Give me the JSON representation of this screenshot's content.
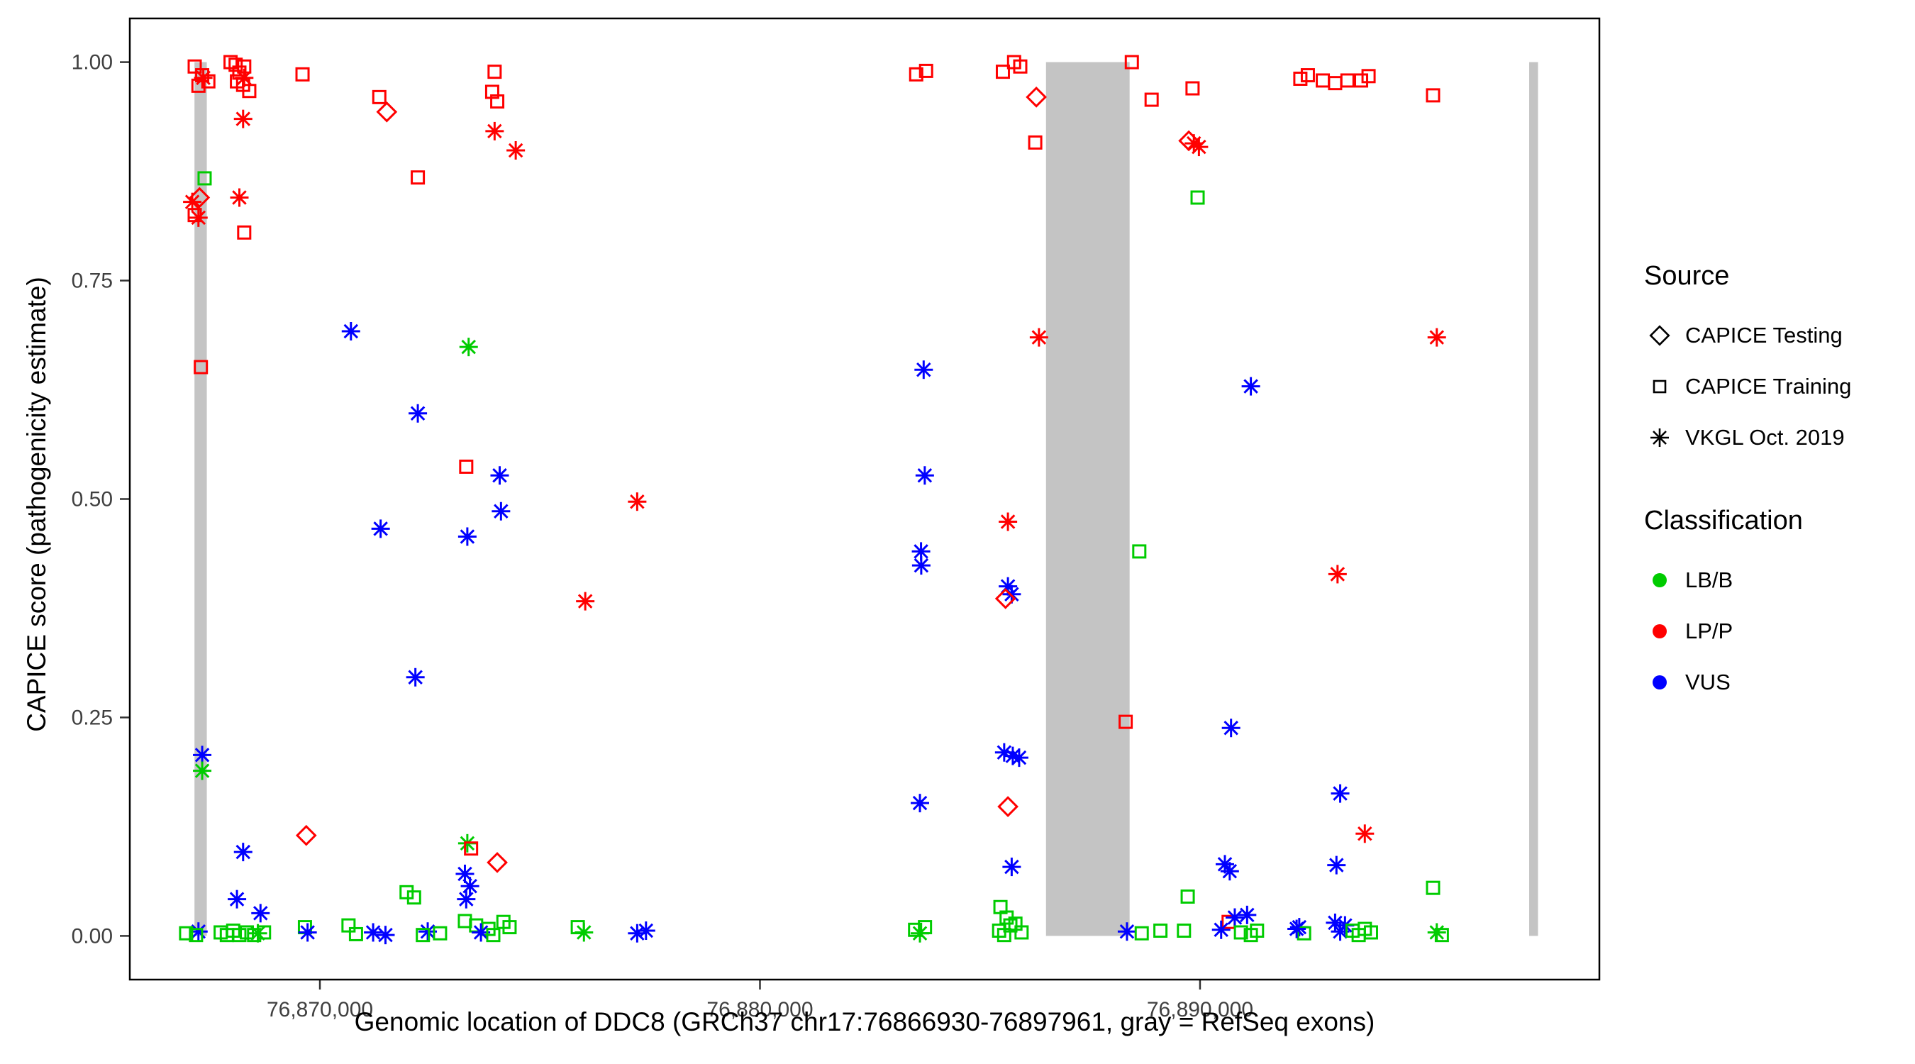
{
  "chart_data": {
    "type": "scatter",
    "title": "",
    "xlabel": "Genomic location of DDC8 (GRCh37 chr17:76866930-76897961, gray = RefSeq exons)",
    "ylabel": "CAPICE score (pathogenicity estimate)",
    "xlim": [
      76865680,
      76899075
    ],
    "ylim": [
      -0.05,
      1.05
    ],
    "grid": false,
    "x_ticks": [
      {
        "value": 76870000,
        "label": "76,870,000"
      },
      {
        "value": 76880000,
        "label": "76,880,000"
      },
      {
        "value": 76890000,
        "label": "76,890,000"
      }
    ],
    "y_ticks": [
      {
        "value": 0.0,
        "label": "0.00"
      },
      {
        "value": 0.25,
        "label": "0.25"
      },
      {
        "value": 0.5,
        "label": "0.50"
      },
      {
        "value": 0.75,
        "label": "0.75"
      },
      {
        "value": 1.0,
        "label": "1.00"
      }
    ],
    "exon_color": "#C4C4C4",
    "exons": [
      {
        "start": 76867150,
        "end": 76867430
      },
      {
        "start": 76886500,
        "end": 76888400
      },
      {
        "start": 76897480,
        "end": 76897680
      }
    ],
    "sources": {
      "T": {
        "label": "CAPICE Testing",
        "shape": "diamond"
      },
      "R": {
        "label": "CAPICE Training",
        "shape": "square"
      },
      "V": {
        "label": "VKGL Oct. 2019",
        "shape": "asterisk"
      }
    },
    "classes": {
      "B": {
        "label": "LB/B",
        "color": "#00CC00"
      },
      "P": {
        "label": "LP/P",
        "color": "#FF0000"
      },
      "U": {
        "label": "VUS",
        "color": "#0000FF"
      }
    },
    "points": [
      [
        76867155,
        0.995,
        "R",
        "P"
      ],
      [
        76867325,
        0.985,
        "R",
        "P"
      ],
      [
        76867240,
        0.973,
        "R",
        "P"
      ],
      [
        76867350,
        0.982,
        "V",
        "P"
      ],
      [
        76867465,
        0.978,
        "R",
        "P"
      ],
      [
        76867970,
        1.0,
        "R",
        "P"
      ],
      [
        76868085,
        0.997,
        "R",
        "P"
      ],
      [
        76868170,
        0.988,
        "R",
        "P"
      ],
      [
        76868280,
        0.995,
        "R",
        "P"
      ],
      [
        76868115,
        0.978,
        "R",
        "P"
      ],
      [
        76868255,
        0.974,
        "R",
        "P"
      ],
      [
        76868280,
        0.982,
        "V",
        "P"
      ],
      [
        76868395,
        0.967,
        "R",
        "P"
      ],
      [
        76868255,
        0.935,
        "V",
        "P"
      ],
      [
        76869605,
        0.986,
        "R",
        "P"
      ],
      [
        76867380,
        0.867,
        "R",
        "B"
      ],
      [
        76867265,
        0.845,
        "T",
        "P"
      ],
      [
        76867100,
        0.84,
        "V",
        "P"
      ],
      [
        76867155,
        0.825,
        "R",
        "P"
      ],
      [
        76867240,
        0.822,
        "V",
        "P"
      ],
      [
        76868170,
        0.845,
        "V",
        "P"
      ],
      [
        76868280,
        0.805,
        "R",
        "P"
      ],
      [
        76867295,
        0.651,
        "R",
        "P"
      ],
      [
        76867325,
        0.207,
        "V",
        "U"
      ],
      [
        76867325,
        0.189,
        "V",
        "B"
      ],
      [
        76868255,
        0.096,
        "V",
        "U"
      ],
      [
        76868115,
        0.042,
        "V",
        "U"
      ],
      [
        76868650,
        0.026,
        "V",
        "U"
      ],
      [
        76869690,
        0.115,
        "T",
        "P"
      ],
      [
        76867240,
        0.005,
        "V",
        "U"
      ],
      [
        76866960,
        0.003,
        "R",
        "B"
      ],
      [
        76867185,
        0.001,
        "R",
        "B"
      ],
      [
        76867745,
        0.004,
        "R",
        "B"
      ],
      [
        76867885,
        0.001,
        "R",
        "B"
      ],
      [
        76868030,
        0.006,
        "R",
        "B"
      ],
      [
        76868170,
        0.001,
        "R",
        "B"
      ],
      [
        76868340,
        0.004,
        "R",
        "B"
      ],
      [
        76868505,
        0.001,
        "R",
        "B"
      ],
      [
        76868730,
        0.004,
        "R",
        "B"
      ],
      [
        76868590,
        0.003,
        "V",
        "B"
      ],
      [
        76869660,
        0.01,
        "R",
        "B"
      ],
      [
        76869720,
        0.004,
        "V",
        "U"
      ],
      [
        76871350,
        0.96,
        "R",
        "P"
      ],
      [
        76871520,
        0.943,
        "T",
        "P"
      ],
      [
        76872225,
        0.868,
        "R",
        "P"
      ],
      [
        76870705,
        0.692,
        "V",
        "U"
      ],
      [
        76872225,
        0.598,
        "V",
        "U"
      ],
      [
        76871380,
        0.466,
        "V",
        "U"
      ],
      [
        76872170,
        0.296,
        "V",
        "U"
      ],
      [
        76871970,
        0.05,
        "R",
        "B"
      ],
      [
        76872140,
        0.044,
        "R",
        "B"
      ],
      [
        76870650,
        0.012,
        "R",
        "B"
      ],
      [
        76870820,
        0.002,
        "R",
        "B"
      ],
      [
        76871210,
        0.004,
        "V",
        "U"
      ],
      [
        76871490,
        0.001,
        "V",
        "U"
      ],
      [
        76872450,
        0.005,
        "V",
        "U"
      ],
      [
        76872340,
        0.001,
        "R",
        "B"
      ],
      [
        76873970,
        0.989,
        "R",
        "P"
      ],
      [
        76873915,
        0.966,
        "R",
        "P"
      ],
      [
        76874030,
        0.955,
        "R",
        "P"
      ],
      [
        76873970,
        0.921,
        "V",
        "P"
      ],
      [
        76874450,
        0.899,
        "V",
        "P"
      ],
      [
        76873380,
        0.674,
        "V",
        "B"
      ],
      [
        76873325,
        0.537,
        "R",
        "P"
      ],
      [
        76874085,
        0.527,
        "V",
        "U"
      ],
      [
        76873350,
        0.457,
        "V",
        "U"
      ],
      [
        76874115,
        0.486,
        "V",
        "U"
      ],
      [
        76873350,
        0.106,
        "V",
        "B"
      ],
      [
        76873435,
        0.1,
        "R",
        "P"
      ],
      [
        76874030,
        0.084,
        "T",
        "P"
      ],
      [
        76873295,
        0.071,
        "V",
        "U"
      ],
      [
        76873410,
        0.057,
        "V",
        "U"
      ],
      [
        76873325,
        0.042,
        "V",
        "U"
      ],
      [
        76873295,
        0.017,
        "R",
        "B"
      ],
      [
        76873550,
        0.012,
        "R",
        "B"
      ],
      [
        76873830,
        0.008,
        "R",
        "B"
      ],
      [
        76874170,
        0.016,
        "R",
        "B"
      ],
      [
        76874310,
        0.01,
        "R",
        "B"
      ],
      [
        76872730,
        0.003,
        "R",
        "B"
      ],
      [
        76873660,
        0.004,
        "V",
        "U"
      ],
      [
        76873940,
        0.001,
        "R",
        "B"
      ],
      [
        76876030,
        0.383,
        "V",
        "P"
      ],
      [
        76877210,
        0.497,
        "V",
        "P"
      ],
      [
        76875860,
        0.01,
        "R",
        "B"
      ],
      [
        76876000,
        0.004,
        "V",
        "B"
      ],
      [
        76877210,
        0.003,
        "V",
        "U"
      ],
      [
        76877410,
        0.006,
        "V",
        "U"
      ],
      [
        76883550,
        0.986,
        "R",
        "P"
      ],
      [
        76883775,
        0.99,
        "R",
        "P"
      ],
      [
        76883720,
        0.648,
        "V",
        "U"
      ],
      [
        76883745,
        0.527,
        "V",
        "U"
      ],
      [
        76883660,
        0.44,
        "V",
        "U"
      ],
      [
        76883665,
        0.424,
        "V",
        "U"
      ],
      [
        76883635,
        0.152,
        "V",
        "U"
      ],
      [
        76883525,
        0.007,
        "R",
        "B"
      ],
      [
        76883635,
        0.003,
        "V",
        "B"
      ],
      [
        76883750,
        0.01,
        "R",
        "B"
      ],
      [
        76885520,
        0.989,
        "R",
        "P"
      ],
      [
        76885775,
        1.0,
        "R",
        "P"
      ],
      [
        76885915,
        0.995,
        "R",
        "P"
      ],
      [
        76886280,
        0.96,
        "T",
        "P"
      ],
      [
        76886255,
        0.908,
        "R",
        "P"
      ],
      [
        76886340,
        0.685,
        "V",
        "P"
      ],
      [
        76885635,
        0.474,
        "V",
        "P"
      ],
      [
        76885635,
        0.4,
        "V",
        "U"
      ],
      [
        76885720,
        0.391,
        "V",
        "U"
      ],
      [
        76885580,
        0.386,
        "T",
        "P"
      ],
      [
        76885550,
        0.21,
        "V",
        "U"
      ],
      [
        76885745,
        0.206,
        "V",
        "U"
      ],
      [
        76885890,
        0.204,
        "V",
        "U"
      ],
      [
        76885635,
        0.148,
        "T",
        "P"
      ],
      [
        76885720,
        0.079,
        "V",
        "U"
      ],
      [
        76885465,
        0.033,
        "R",
        "B"
      ],
      [
        76885605,
        0.021,
        "R",
        "B"
      ],
      [
        76885805,
        0.014,
        "R",
        "B"
      ],
      [
        76885435,
        0.006,
        "R",
        "B"
      ],
      [
        76885550,
        0.001,
        "R",
        "B"
      ],
      [
        76885945,
        0.004,
        "R",
        "B"
      ],
      [
        76885690,
        0.012,
        "R",
        "B"
      ],
      [
        76888450,
        1.0,
        "R",
        "P"
      ],
      [
        76888900,
        0.957,
        "R",
        "P"
      ],
      [
        76888310,
        0.245,
        "R",
        "P"
      ],
      [
        76888620,
        0.44,
        "R",
        "B"
      ],
      [
        76888340,
        0.005,
        "V",
        "U"
      ],
      [
        76888675,
        0.003,
        "R",
        "B"
      ],
      [
        76889100,
        0.006,
        "R",
        "B"
      ],
      [
        76889830,
        0.97,
        "R",
        "P"
      ],
      [
        76889745,
        0.91,
        "T",
        "P"
      ],
      [
        76889860,
        0.907,
        "V",
        "P"
      ],
      [
        76889975,
        0.903,
        "V",
        "P"
      ],
      [
        76889945,
        0.845,
        "R",
        "B"
      ],
      [
        76891155,
        0.629,
        "V",
        "U"
      ],
      [
        76890705,
        0.238,
        "V",
        "U"
      ],
      [
        76890565,
        0.082,
        "V",
        "U"
      ],
      [
        76890675,
        0.074,
        "V",
        "U"
      ],
      [
        76889720,
        0.045,
        "R",
        "B"
      ],
      [
        76889635,
        0.006,
        "R",
        "B"
      ],
      [
        76890650,
        0.016,
        "R",
        "P"
      ],
      [
        76890790,
        0.021,
        "V",
        "U"
      ],
      [
        76891070,
        0.024,
        "V",
        "U"
      ],
      [
        76890930,
        0.004,
        "R",
        "B"
      ],
      [
        76891155,
        0.001,
        "R",
        "B"
      ],
      [
        76891295,
        0.006,
        "R",
        "B"
      ],
      [
        76890480,
        0.007,
        "V",
        "U"
      ],
      [
        76892255,
        0.01,
        "V",
        "U"
      ],
      [
        76892365,
        0.003,
        "R",
        "B"
      ],
      [
        76892280,
        0.981,
        "R",
        "P"
      ],
      [
        76892450,
        0.985,
        "R",
        "P"
      ],
      [
        76892790,
        0.979,
        "R",
        "P"
      ],
      [
        76893070,
        0.976,
        "R",
        "P"
      ],
      [
        76893350,
        0.979,
        "R",
        "P"
      ],
      [
        76893660,
        0.979,
        "R",
        "P"
      ],
      [
        76893830,
        0.984,
        "R",
        "P"
      ],
      [
        76895295,
        0.962,
        "R",
        "P"
      ],
      [
        76895380,
        0.685,
        "V",
        "P"
      ],
      [
        76893125,
        0.414,
        "V",
        "P"
      ],
      [
        76893185,
        0.163,
        "V",
        "U"
      ],
      [
        76893745,
        0.117,
        "V",
        "P"
      ],
      [
        76893100,
        0.081,
        "V",
        "U"
      ],
      [
        76892195,
        0.008,
        "V",
        "U"
      ],
      [
        76893070,
        0.015,
        "V",
        "U"
      ],
      [
        76893185,
        0.005,
        "V",
        "U"
      ],
      [
        76893295,
        0.012,
        "V",
        "U"
      ],
      [
        76893465,
        0.006,
        "R",
        "B"
      ],
      [
        76893605,
        0.001,
        "R",
        "B"
      ],
      [
        76893745,
        0.008,
        "R",
        "B"
      ],
      [
        76893885,
        0.004,
        "R",
        "B"
      ],
      [
        76895295,
        0.055,
        "R",
        "B"
      ],
      [
        76895380,
        0.004,
        "V",
        "B"
      ],
      [
        76895495,
        0.001,
        "R",
        "B"
      ]
    ]
  },
  "legend": {
    "source": {
      "title": "Source",
      "items": [
        {
          "label": "CAPICE Testing",
          "shape": "diamond"
        },
        {
          "label": "CAPICE Training",
          "shape": "square"
        },
        {
          "label": "VKGL Oct. 2019",
          "shape": "asterisk"
        }
      ]
    },
    "classification": {
      "title": "Classification",
      "items": [
        {
          "label": "LB/B",
          "color": "#00CC00"
        },
        {
          "label": "LP/P",
          "color": "#FF0000"
        },
        {
          "label": "VUS",
          "color": "#0000FF"
        }
      ]
    }
  }
}
